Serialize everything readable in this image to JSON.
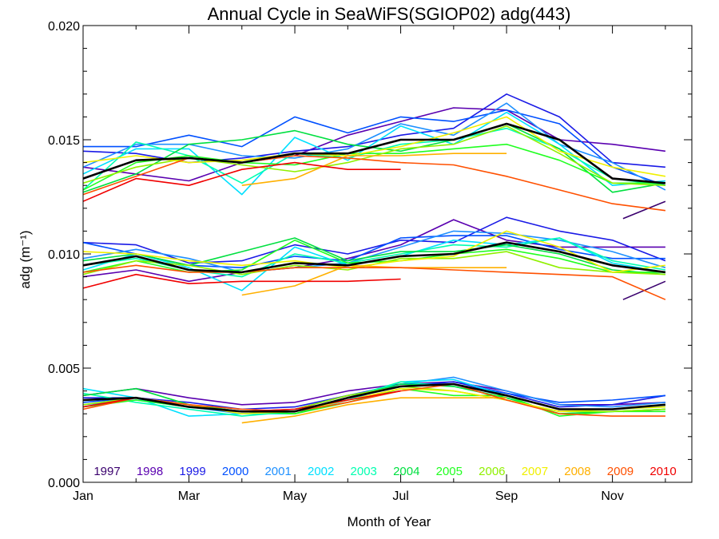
{
  "chart_data": {
    "type": "line",
    "title": "Annual Cycle in SeaWiFS(SGIOP02) adg(443)",
    "xlabel": "Month of Year",
    "ylabel": "adg (m⁻¹)",
    "xlim": [
      1,
      12.5
    ],
    "ylim": [
      0,
      0.02
    ],
    "x_ticks": [
      {
        "value": 1,
        "label": "Jan"
      },
      {
        "value": 3,
        "label": "Mar"
      },
      {
        "value": 5,
        "label": "May"
      },
      {
        "value": 7,
        "label": "Jul"
      },
      {
        "value": 9,
        "label": "Sep"
      },
      {
        "value": 11,
        "label": "Nov"
      }
    ],
    "y_ticks": [
      {
        "value": 0.0,
        "label": "0.000"
      },
      {
        "value": 0.005,
        "label": "0.005"
      },
      {
        "value": 0.01,
        "label": "0.010"
      },
      {
        "value": 0.015,
        "label": "0.015"
      },
      {
        "value": 0.02,
        "label": "0.020"
      }
    ],
    "grid": false,
    "legend_placement": "bottom",
    "months": [
      1,
      2,
      3,
      4,
      5,
      6,
      7,
      8,
      9,
      10,
      11,
      12
    ],
    "series": [
      {
        "name": "1997",
        "color": "#3a006e",
        "x": [
          11.2,
          12.0
        ],
        "upper": [
          0.01155,
          0.0123
        ],
        "middle": [
          0.008,
          0.0088
        ],
        "lower": [
          0.0031,
          0.0032
        ]
      },
      {
        "name": "1998",
        "color": "#5a00b0",
        "upper": [
          0.0138,
          0.0135,
          0.0132,
          0.014,
          0.0143,
          0.0152,
          0.0158,
          0.0164,
          0.0163,
          0.015,
          0.0148,
          0.0145
        ],
        "middle": [
          0.009,
          0.0093,
          0.0088,
          0.0092,
          0.0094,
          0.0098,
          0.0104,
          0.0115,
          0.0106,
          0.0103,
          0.0103,
          0.0103
        ],
        "lower": [
          0.0038,
          0.0041,
          0.0037,
          0.0034,
          0.0035,
          0.004,
          0.0043,
          0.0044,
          0.004,
          0.0034,
          0.0034,
          0.0035
        ]
      },
      {
        "name": "1999",
        "color": "#1a1ae6",
        "upper": [
          0.0145,
          0.0144,
          0.014,
          0.0142,
          0.0145,
          0.0147,
          0.0152,
          0.0155,
          0.017,
          0.016,
          0.014,
          0.0138
        ],
        "middle": [
          0.0105,
          0.0104,
          0.0096,
          0.0097,
          0.0104,
          0.01,
          0.0106,
          0.0105,
          0.0116,
          0.011,
          0.0106,
          0.0097
        ],
        "lower": [
          0.0037,
          0.0037,
          0.0035,
          0.0032,
          0.0033,
          0.0038,
          0.0042,
          0.0044,
          0.0039,
          0.0033,
          0.0034,
          0.0038
        ]
      },
      {
        "name": "2000",
        "color": "#0050ff",
        "upper": [
          0.0147,
          0.0147,
          0.0152,
          0.0147,
          0.016,
          0.0153,
          0.016,
          0.0158,
          0.0163,
          0.0157,
          0.0138,
          0.013
        ],
        "middle": [
          0.0105,
          0.01,
          0.0095,
          0.0094,
          0.0099,
          0.0097,
          0.0107,
          0.0108,
          0.0108,
          0.0102,
          0.0098,
          0.0098
        ],
        "lower": [
          0.0035,
          0.0037,
          0.0034,
          0.0031,
          0.0032,
          0.0038,
          0.0043,
          0.0043,
          0.0039,
          0.0035,
          0.0036,
          0.0038
        ]
      },
      {
        "name": "2001",
        "color": "#1e90ff",
        "upper": [
          0.0138,
          0.0148,
          0.0148,
          0.0143,
          0.0142,
          0.0146,
          0.0157,
          0.0152,
          0.0166,
          0.0148,
          0.014,
          0.0128
        ],
        "middle": [
          0.0098,
          0.0102,
          0.0098,
          0.0092,
          0.0094,
          0.0096,
          0.0103,
          0.011,
          0.0109,
          0.0106,
          0.0101,
          0.0094
        ],
        "lower": [
          0.0034,
          0.0036,
          0.0033,
          0.003,
          0.0031,
          0.0036,
          0.0043,
          0.0046,
          0.004,
          0.0034,
          0.0033,
          0.0035
        ]
      },
      {
        "name": "2002",
        "color": "#00e0ff",
        "upper": [
          0.0135,
          0.0146,
          0.0146,
          0.0126,
          0.0151,
          0.0141,
          0.0156,
          0.0148,
          0.0162,
          0.0148,
          0.013,
          0.0132
        ],
        "middle": [
          0.0093,
          0.01,
          0.0094,
          0.0084,
          0.0103,
          0.0095,
          0.0099,
          0.0106,
          0.0104,
          0.0107,
          0.0096,
          0.0092
        ],
        "lower": [
          0.0041,
          0.0037,
          0.0029,
          0.003,
          0.003,
          0.0036,
          0.0044,
          0.0045,
          0.0038,
          0.0032,
          0.0032,
          0.0033
        ]
      },
      {
        "name": "2003",
        "color": "#00ffb0",
        "upper": [
          0.0128,
          0.0149,
          0.0143,
          0.0131,
          0.0144,
          0.0142,
          0.0148,
          0.015,
          0.0155,
          0.0146,
          0.0133,
          0.013
        ],
        "middle": [
          0.0095,
          0.0098,
          0.0093,
          0.009,
          0.01,
          0.0096,
          0.01,
          0.0104,
          0.0103,
          0.0107,
          0.0097,
          0.0093
        ],
        "lower": [
          0.0039,
          0.0035,
          0.0032,
          0.0029,
          0.0031,
          0.0037,
          0.0044,
          0.0042,
          0.0037,
          0.003,
          0.0031,
          0.0032
        ]
      },
      {
        "name": "2004",
        "color": "#00e040",
        "upper": [
          0.0127,
          0.0135,
          0.0148,
          0.015,
          0.0154,
          0.0148,
          0.0145,
          0.015,
          0.0157,
          0.0146,
          0.0127,
          0.0131
        ],
        "middle": [
          0.0097,
          0.01,
          0.0095,
          0.0101,
          0.0107,
          0.0097,
          0.0101,
          0.0101,
          0.0104,
          0.01,
          0.0093,
          0.0091
        ],
        "lower": [
          0.0038,
          0.0041,
          0.0034,
          0.0031,
          0.003,
          0.0037,
          0.0043,
          0.0042,
          0.0037,
          0.003,
          0.0031,
          0.0032
        ]
      },
      {
        "name": "2005",
        "color": "#20ff20",
        "upper": [
          0.0128,
          0.014,
          0.0143,
          0.014,
          0.0139,
          0.0144,
          0.0144,
          0.0146,
          0.0148,
          0.0141,
          0.0131,
          0.0131
        ],
        "middle": [
          0.0092,
          0.0097,
          0.0092,
          0.0093,
          0.0106,
          0.0096,
          0.0097,
          0.01,
          0.0102,
          0.0098,
          0.0092,
          0.0092
        ],
        "lower": [
          0.0033,
          0.0036,
          0.0033,
          0.0031,
          0.003,
          0.0035,
          0.0041,
          0.0038,
          0.0038,
          0.0029,
          0.0031,
          0.0031
        ]
      },
      {
        "name": "2006",
        "color": "#90f000",
        "upper": [
          0.0131,
          0.0138,
          0.0142,
          0.0139,
          0.0136,
          0.014,
          0.0146,
          0.0148,
          0.0156,
          0.0144,
          0.0131,
          0.013
        ],
        "middle": [
          0.0091,
          0.0097,
          0.0095,
          0.0091,
          0.0095,
          0.0093,
          0.0098,
          0.0098,
          0.0101,
          0.0094,
          0.0092,
          0.0091
        ],
        "lower": [
          0.0034,
          0.0037,
          0.0033,
          0.0031,
          0.0032,
          0.0038,
          0.0042,
          0.004,
          0.0036,
          0.0031,
          0.0031,
          0.0032
        ]
      },
      {
        "name": "2007",
        "color": "#f0f000",
        "upper": [
          0.014,
          0.0143,
          0.014,
          0.0141,
          0.0144,
          0.0143,
          0.0147,
          0.0153,
          0.016,
          0.0145,
          0.0138,
          0.0134
        ],
        "middle": [
          0.0101,
          0.01,
          0.0097,
          0.0095,
          0.0097,
          0.0094,
          0.0097,
          0.0099,
          0.011,
          0.0103,
          0.0092,
          0.0095
        ],
        "lower": [
          0.0036,
          0.0037,
          0.0034,
          0.003,
          0.0031,
          0.0036,
          0.0041,
          0.004,
          0.0036,
          0.0031,
          0.0032,
          0.0033
        ]
      },
      {
        "name": "2008",
        "color": "#ffb000",
        "x": [
          4,
          5,
          6,
          7,
          8,
          9
        ],
        "upper": [
          0.013,
          0.0133,
          0.0143,
          0.0143,
          0.0144,
          0.0144
        ],
        "middle": [
          0.0082,
          0.0086,
          0.0095,
          0.0094,
          0.0094,
          0.0094
        ],
        "lower": [
          0.0026,
          0.0029,
          0.0034,
          0.0037,
          0.0037,
          0.0037
        ]
      },
      {
        "name": "2009",
        "color": "#ff5000",
        "upper": [
          0.0126,
          0.0134,
          0.0142,
          0.014,
          0.0143,
          0.0142,
          0.014,
          0.0139,
          0.0134,
          0.0128,
          0.0122,
          0.0119
        ],
        "middle": [
          0.0092,
          0.0095,
          0.0092,
          0.0092,
          0.0094,
          0.0094,
          0.0094,
          0.0093,
          0.0092,
          0.0091,
          0.009,
          0.008
        ],
        "lower": [
          0.0032,
          0.0037,
          0.0034,
          0.0032,
          0.0031,
          0.0035,
          0.004,
          0.0043,
          0.0036,
          0.003,
          0.0029,
          0.0029
        ]
      },
      {
        "name": "2010",
        "color": "#f00000",
        "x": [
          1,
          2,
          3,
          4,
          5,
          6,
          7
        ],
        "upper": [
          0.0123,
          0.0133,
          0.013,
          0.0137,
          0.014,
          0.0137,
          0.0137
        ],
        "middle": [
          0.0085,
          0.0091,
          0.0087,
          0.0088,
          0.0088,
          0.0088,
          0.0089
        ],
        "lower": [
          0.0033,
          0.0037,
          0.0033,
          0.0031,
          0.0032,
          0.0036,
          0.004
        ]
      },
      {
        "name": "",
        "color": "#000000",
        "bold": true,
        "upper": [
          0.0133,
          0.0141,
          0.0142,
          0.014,
          0.0144,
          0.0144,
          0.015,
          0.015,
          0.0157,
          0.015,
          0.0133,
          0.0131
        ],
        "middle": [
          0.0095,
          0.0099,
          0.0093,
          0.0092,
          0.0096,
          0.0095,
          0.0099,
          0.01,
          0.0105,
          0.0101,
          0.0095,
          0.0092
        ],
        "lower": [
          0.0036,
          0.0037,
          0.0033,
          0.0031,
          0.0031,
          0.0037,
          0.0042,
          0.0043,
          0.0038,
          0.0032,
          0.0032,
          0.0034
        ]
      }
    ]
  }
}
